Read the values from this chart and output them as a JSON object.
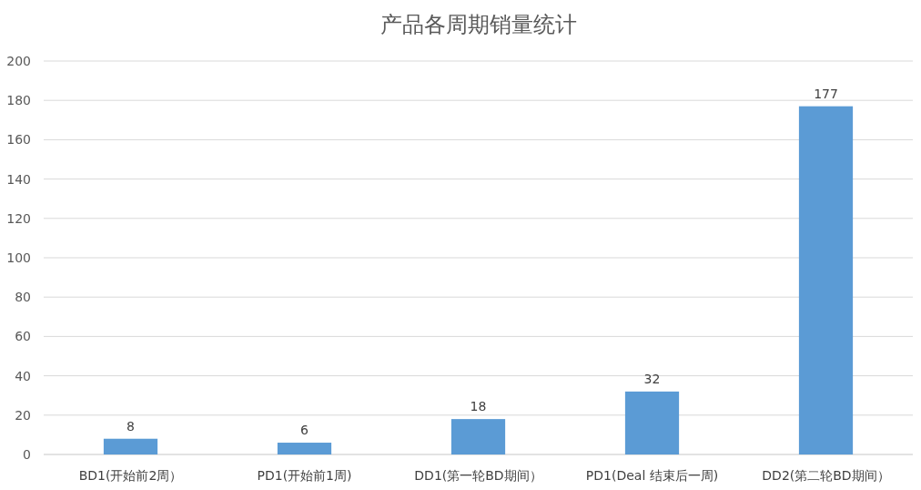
{
  "chart_data": {
    "type": "bar",
    "title": "产品各周期销量统计",
    "categories": [
      "BD1(开始前2周）",
      "PD1(开始前1周)",
      "DD1(第一轮BD期间）",
      "PD1(Deal 结束后一周)",
      "DD2(第二轮BD期间）"
    ],
    "values": [
      8,
      6,
      18,
      32,
      177
    ],
    "color": "#5b9bd5",
    "data_labels": true,
    "ylim": [
      0,
      200
    ],
    "yticks": [
      0,
      20,
      40,
      60,
      80,
      100,
      120,
      140,
      160,
      180,
      200
    ],
    "grid": "y"
  }
}
